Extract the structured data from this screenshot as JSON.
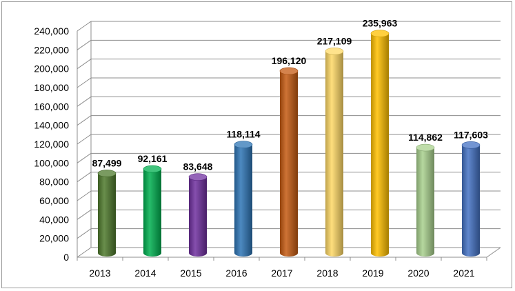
{
  "chart_data": {
    "type": "bar",
    "style": "3d-cylinder",
    "categories": [
      "2013",
      "2014",
      "2015",
      "2016",
      "2017",
      "2018",
      "2019",
      "2020",
      "2021"
    ],
    "values": [
      87499,
      92161,
      83648,
      118114,
      196120,
      217109,
      235963,
      114862,
      117603
    ],
    "value_labels": [
      "87,499",
      "92,161",
      "83,648",
      "118,114",
      "196,120",
      "217,109",
      "235,963",
      "114,862",
      "117,603"
    ],
    "bar_colors": [
      "#4e7a2c",
      "#00b050",
      "#7030a0",
      "#2e75b6",
      "#c55a11",
      "#ffd966",
      "#ffc000",
      "#a9d18e",
      "#4472c4"
    ],
    "yticks": [
      "0",
      "20,000",
      "40,000",
      "60,000",
      "80,000",
      "100,000",
      "120,000",
      "140,000",
      "160,000",
      "180,000",
      "200,000",
      "220,000",
      "240,000"
    ],
    "ylim": [
      0,
      240000
    ],
    "grid": true,
    "legend": "none"
  }
}
